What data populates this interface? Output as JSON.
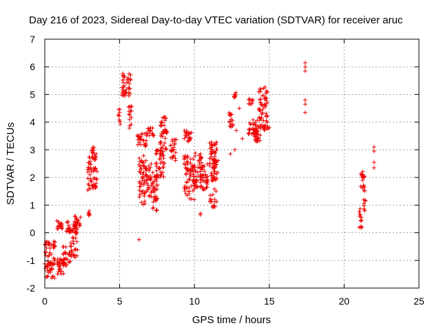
{
  "chart_data": {
    "type": "scatter",
    "title": "Day 216 of 2023, Sidereal Day-to-day VTEC variation (SDTVAR) for receiver aruc",
    "xlabel": "GPS time / hours",
    "ylabel": "SDTVAR / TECUs",
    "xlim": [
      0,
      25
    ],
    "ylim": [
      -2,
      7
    ],
    "xticks": [
      "0",
      "5",
      "10",
      "15",
      "20",
      "25"
    ],
    "yticks": [
      "-2",
      "-1",
      "0",
      "1",
      "2",
      "3",
      "4",
      "5",
      "6",
      "7"
    ],
    "grid": true,
    "marker": "plus",
    "color": "#ee0000",
    "series": [
      {
        "name": "SDTVAR",
        "segments": [
          {
            "x0": 0.0,
            "x1": 0.45,
            "ymin": -1.7,
            "ymax": -0.3
          },
          {
            "x0": 0.45,
            "x1": 0.7,
            "ymin": -1.7,
            "ymax": -0.9
          },
          {
            "x0": 0.5,
            "x1": 0.7,
            "ymin": -0.6,
            "ymax": -0.3
          },
          {
            "x0": 0.8,
            "x1": 1.3,
            "ymin": -1.5,
            "ymax": -0.9
          },
          {
            "x0": 0.8,
            "x1": 1.2,
            "ymin": 0.1,
            "ymax": 0.45
          },
          {
            "x0": 1.2,
            "x1": 1.7,
            "ymin": -1.2,
            "ymax": -0.5
          },
          {
            "x0": 1.4,
            "x1": 1.7,
            "ymin": 0.0,
            "ymax": 0.4
          },
          {
            "x0": 1.7,
            "x1": 2.2,
            "ymin": -0.9,
            "ymax": 0.2
          },
          {
            "x0": 1.9,
            "x1": 2.4,
            "ymin": 0.1,
            "ymax": 0.6
          },
          {
            "x0": 2.9,
            "x1": 3.0,
            "ymin": 0.6,
            "ymax": 0.8
          },
          {
            "x0": 2.85,
            "x1": 3.1,
            "ymin": 1.5,
            "ymax": 2.8
          },
          {
            "x0": 3.1,
            "x1": 3.5,
            "ymin": 1.6,
            "ymax": 2.0
          },
          {
            "x0": 3.1,
            "x1": 3.5,
            "ymin": 2.2,
            "ymax": 3.1
          },
          {
            "x0": 4.9,
            "x1": 5.05,
            "ymin": 3.9,
            "ymax": 4.5
          },
          {
            "x0": 5.15,
            "x1": 5.75,
            "ymin": 4.9,
            "ymax": 5.8
          },
          {
            "x0": 5.6,
            "x1": 5.8,
            "ymin": 3.7,
            "ymax": 4.7
          },
          {
            "x0": 6.2,
            "x1": 6.8,
            "ymin": 3.1,
            "ymax": 3.6
          },
          {
            "x0": 6.3,
            "x1": 6.8,
            "ymin": 1.0,
            "ymax": 2.8
          },
          {
            "x0": 6.8,
            "x1": 7.2,
            "ymin": 1.3,
            "ymax": 2.5
          },
          {
            "x0": 6.8,
            "x1": 7.3,
            "ymin": 3.5,
            "ymax": 3.8
          },
          {
            "x0": 7.2,
            "x1": 7.6,
            "ymin": 0.8,
            "ymax": 2.2
          },
          {
            "x0": 7.4,
            "x1": 8.0,
            "ymin": 2.0,
            "ymax": 3.0
          },
          {
            "x0": 7.7,
            "x1": 8.2,
            "ymin": 3.0,
            "ymax": 4.2
          },
          {
            "x0": 8.4,
            "x1": 8.8,
            "ymin": 2.6,
            "ymax": 3.4
          },
          {
            "x0": 9.3,
            "x1": 9.6,
            "ymin": 1.3,
            "ymax": 2.9
          },
          {
            "x0": 9.3,
            "x1": 9.8,
            "ymin": 3.3,
            "ymax": 3.7
          },
          {
            "x0": 9.6,
            "x1": 10.0,
            "ymin": 1.2,
            "ymax": 2.7
          },
          {
            "x0": 10.0,
            "x1": 10.5,
            "ymin": 1.6,
            "ymax": 2.9
          },
          {
            "x0": 10.5,
            "x1": 10.9,
            "ymin": 1.5,
            "ymax": 2.5
          },
          {
            "x0": 11.0,
            "x1": 11.5,
            "ymin": 0.9,
            "ymax": 3.3
          },
          {
            "x0": 11.2,
            "x1": 11.6,
            "ymin": 1.9,
            "ymax": 2.7
          },
          {
            "x0": 12.3,
            "x1": 12.6,
            "ymin": 3.8,
            "ymax": 4.4
          },
          {
            "x0": 12.6,
            "x1": 12.8,
            "ymin": 4.8,
            "ymax": 5.1
          },
          {
            "x0": 13.6,
            "x1": 13.9,
            "ymin": 4.6,
            "ymax": 4.9
          },
          {
            "x0": 13.6,
            "x1": 14.2,
            "ymin": 3.5,
            "ymax": 4.1
          },
          {
            "x0": 14.0,
            "x1": 14.4,
            "ymin": 3.3,
            "ymax": 3.9
          },
          {
            "x0": 14.3,
            "x1": 14.9,
            "ymin": 4.0,
            "ymax": 5.3
          },
          {
            "x0": 14.4,
            "x1": 15.0,
            "ymin": 3.7,
            "ymax": 3.9
          },
          {
            "x0": 21.0,
            "x1": 21.2,
            "ymin": 0.1,
            "ymax": 1.0
          },
          {
            "x0": 21.1,
            "x1": 21.4,
            "ymin": 1.4,
            "ymax": 2.3
          },
          {
            "x0": 21.3,
            "x1": 21.5,
            "ymin": 0.7,
            "ymax": 1.2
          }
        ],
        "points": [
          {
            "x": 6.3,
            "y": -0.25
          },
          {
            "x": 10.4,
            "y": 0.65
          },
          {
            "x": 10.4,
            "y": 0.7
          },
          {
            "x": 12.4,
            "y": 2.85
          },
          {
            "x": 12.7,
            "y": 3.0
          },
          {
            "x": 12.8,
            "y": 3.7
          },
          {
            "x": 13.0,
            "y": 4.5
          },
          {
            "x": 13.2,
            "y": 3.4
          },
          {
            "x": 15.0,
            "y": 3.8
          },
          {
            "x": 17.4,
            "y": 4.35
          },
          {
            "x": 17.4,
            "y": 4.65
          },
          {
            "x": 17.4,
            "y": 4.8
          },
          {
            "x": 17.4,
            "y": 5.85
          },
          {
            "x": 17.4,
            "y": 6.0
          },
          {
            "x": 17.4,
            "y": 6.15
          },
          {
            "x": 22.0,
            "y": 2.35
          },
          {
            "x": 22.0,
            "y": 2.55
          },
          {
            "x": 22.0,
            "y": 2.95
          },
          {
            "x": 22.0,
            "y": 3.1
          }
        ]
      }
    ]
  }
}
